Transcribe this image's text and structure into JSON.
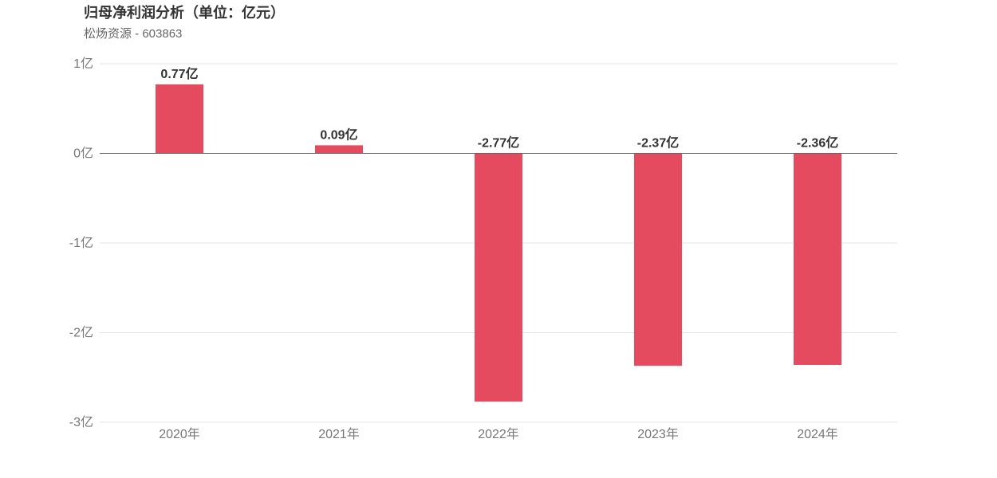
{
  "title": "归母净利润分析（单位：亿元）",
  "subtitle": "松炀资源 - 603863",
  "colors": {
    "bar": "#e54b5f",
    "grid": "#e6e6e6",
    "zero_line": "#666666",
    "tick_text": "#777777",
    "label_text": "#333333"
  },
  "chart_data": {
    "type": "bar",
    "title": "归母净利润分析（单位：亿元）",
    "subtitle": "松炀资源 - 603863",
    "xlabel": "",
    "ylabel": "",
    "categories": [
      "2020年",
      "2021年",
      "2022年",
      "2023年",
      "2024年"
    ],
    "values": [
      0.77,
      0.09,
      -2.77,
      -2.37,
      -2.36
    ],
    "data_labels": [
      "0.77亿",
      "0.09亿",
      "-2.77亿",
      "-2.37亿",
      "-2.36亿"
    ],
    "y_ticks": [
      1,
      0,
      -1,
      -2,
      -3
    ],
    "y_tick_labels": [
      "1亿",
      "0亿",
      "-1亿",
      "-2亿",
      "-3亿"
    ],
    "ylim": [
      -3,
      1
    ],
    "grid": true,
    "legend": "none"
  }
}
